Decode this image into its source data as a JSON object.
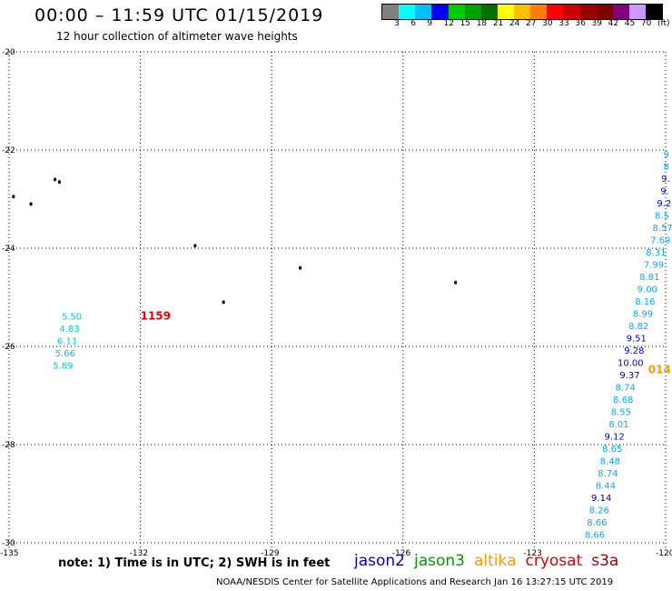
{
  "header": {
    "title": "00:00 – 11:59 UTC 01/15/2019",
    "subtitle": "12 hour collection of altimeter wave heights"
  },
  "legend": {
    "colors": [
      "#808080",
      "#00ffff",
      "#00c0ff",
      "#0000ff",
      "#00cc00",
      "#00a000",
      "#007000",
      "#ffff00",
      "#ffc000",
      "#ff8000",
      "#ff0000",
      "#cc0000",
      "#990000",
      "#800000",
      "#800080",
      "#cc99ff",
      "#000000"
    ],
    "labels": [
      "3",
      "6",
      "9",
      "12",
      "15",
      "18",
      "21",
      "24",
      "27",
      "30",
      "33",
      "36",
      "39",
      "42",
      "45",
      "70",
      "(ft)"
    ]
  },
  "axes": {
    "lat_ticks": [
      "-20",
      "-22",
      "-24",
      "-26",
      "-28",
      "-30"
    ],
    "lon_ticks": [
      "-135",
      "-132",
      "-129",
      "-126",
      "-123",
      "-120"
    ]
  },
  "map_data": {
    "lat_range": [
      -30,
      -20
    ],
    "lon_range": [
      -135,
      -120
    ],
    "time_labels": [
      {
        "text": "1159",
        "lon": -132.0,
        "lat": -25.45,
        "color": "#e00000"
      },
      {
        "text": "014",
        "lon": -120.4,
        "lat": -26.55,
        "color": "#ff9900"
      }
    ],
    "swh_points": [
      {
        "text": "5.50",
        "lon": -133.8,
        "lat": -25.45,
        "color": "#00c8e0"
      },
      {
        "text": "4.83",
        "lon": -133.85,
        "lat": -25.7,
        "color": "#00c8e0"
      },
      {
        "text": "6.11",
        "lon": -133.9,
        "lat": -25.95,
        "color": "#00c8e0"
      },
      {
        "text": "5.66",
        "lon": -133.95,
        "lat": -26.2,
        "color": "#00c8e0"
      },
      {
        "text": "5.89",
        "lon": -134.0,
        "lat": -26.45,
        "color": "#00c8e0"
      },
      {
        "text": "9",
        "lon": -120.05,
        "lat": -22.15,
        "color": "#00aaff"
      },
      {
        "text": "8",
        "lon": -120.05,
        "lat": -22.4,
        "color": "#00aaff"
      },
      {
        "text": "9.",
        "lon": -120.1,
        "lat": -22.65,
        "color": "#0000cc"
      },
      {
        "text": "9.",
        "lon": -120.12,
        "lat": -22.9,
        "color": "#0000cc"
      },
      {
        "text": "9.2",
        "lon": -120.2,
        "lat": -23.15,
        "color": "#0000cc"
      },
      {
        "text": "8.5",
        "lon": -120.25,
        "lat": -23.4,
        "color": "#00aaff"
      },
      {
        "text": "8.57",
        "lon": -120.3,
        "lat": -23.65,
        "color": "#00aaff"
      },
      {
        "text": "7.69",
        "lon": -120.35,
        "lat": -23.9,
        "color": "#00aaff"
      },
      {
        "text": "8.31",
        "lon": -120.45,
        "lat": -24.15,
        "color": "#00aaff"
      },
      {
        "text": "7.99",
        "lon": -120.5,
        "lat": -24.4,
        "color": "#00aaff"
      },
      {
        "text": "8.81",
        "lon": -120.6,
        "lat": -24.65,
        "color": "#00aaff"
      },
      {
        "text": "9.00",
        "lon": -120.65,
        "lat": -24.9,
        "color": "#00aaff"
      },
      {
        "text": "8.16",
        "lon": -120.7,
        "lat": -25.15,
        "color": "#00aaff"
      },
      {
        "text": "8.99",
        "lon": -120.75,
        "lat": -25.4,
        "color": "#00aaff"
      },
      {
        "text": "8.82",
        "lon": -120.85,
        "lat": -25.65,
        "color": "#00aaff"
      },
      {
        "text": "9.51",
        "lon": -120.9,
        "lat": -25.9,
        "color": "#0000cc"
      },
      {
        "text": "9.28",
        "lon": -120.95,
        "lat": -26.15,
        "color": "#0000cc"
      },
      {
        "text": "10.00",
        "lon": -121.1,
        "lat": -26.4,
        "color": "#0000cc"
      },
      {
        "text": "9.37",
        "lon": -121.05,
        "lat": -26.65,
        "color": "#0000cc"
      },
      {
        "text": "8.74",
        "lon": -121.15,
        "lat": -26.9,
        "color": "#00aaff"
      },
      {
        "text": "8.68",
        "lon": -121.2,
        "lat": -27.15,
        "color": "#00aaff"
      },
      {
        "text": "8.55",
        "lon": -121.25,
        "lat": -27.4,
        "color": "#00aaff"
      },
      {
        "text": "8.01",
        "lon": -121.3,
        "lat": -27.65,
        "color": "#00aaff"
      },
      {
        "text": "9.12",
        "lon": -121.4,
        "lat": -27.9,
        "color": "#0000cc"
      },
      {
        "text": "8.65",
        "lon": -121.45,
        "lat": -28.15,
        "color": "#00aaff"
      },
      {
        "text": "8.48",
        "lon": -121.5,
        "lat": -28.4,
        "color": "#00aaff"
      },
      {
        "text": "8.74",
        "lon": -121.55,
        "lat": -28.65,
        "color": "#00aaff"
      },
      {
        "text": "8.44",
        "lon": -121.6,
        "lat": -28.9,
        "color": "#00aaff"
      },
      {
        "text": "9.14",
        "lon": -121.7,
        "lat": -29.15,
        "color": "#000080"
      },
      {
        "text": "8.26",
        "lon": -121.75,
        "lat": -29.4,
        "color": "#00aaff"
      },
      {
        "text": "8.66",
        "lon": -121.8,
        "lat": -29.65,
        "color": "#00aaff"
      },
      {
        "text": "8.66",
        "lon": -121.85,
        "lat": -29.9,
        "color": "#00aaff"
      }
    ],
    "islands": [
      {
        "lon": -134.5,
        "lat": -23.1
      },
      {
        "lon": -134.9,
        "lat": -22.95
      },
      {
        "lon": -133.95,
        "lat": -22.6
      },
      {
        "lon": -133.85,
        "lat": -22.65
      },
      {
        "lon": -130.75,
        "lat": -23.95
      },
      {
        "lon": -130.1,
        "lat": -25.1
      },
      {
        "lon": -128.35,
        "lat": -24.4
      },
      {
        "lon": -124.8,
        "lat": -24.7
      }
    ]
  },
  "footer": {
    "note": "note: 1) Time is in UTC; 2) SWH is in feet",
    "satellites": [
      {
        "name": "jason2",
        "color": "#0000cc"
      },
      {
        "name": "jason3",
        "color": "#009900"
      },
      {
        "name": "altika",
        "color": "#ff9900"
      },
      {
        "name": "cryosat",
        "color": "#dd0000"
      },
      {
        "name": "s3a",
        "color": "#990000"
      }
    ],
    "credit": "NOAA/NESDIS Center for Satellite Applications and Research   Jan 16 13:27:15 UTC 2019"
  }
}
